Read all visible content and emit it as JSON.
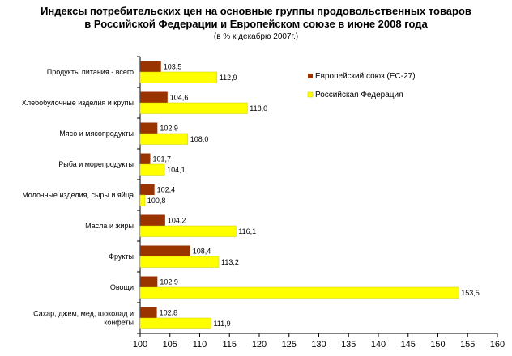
{
  "chart_data": {
    "type": "bar",
    "orientation": "horizontal",
    "title_lines": [
      "Индексы потребительских цен на основные группы продовольственных товаров",
      "в Российской Федерации и Европейском союзе в июне 2008 года"
    ],
    "subtitle": "(в % к декабрю 2007г.)",
    "categories": [
      [
        "Продукты питания - всего"
      ],
      [
        "Хлебобулочные изделия и крупы"
      ],
      [
        "Мясо и мясопродукты"
      ],
      [
        "Рыба и морепродукты"
      ],
      [
        "Молочные изделия, сыры и яйца"
      ],
      [
        "Масла и жиры"
      ],
      [
        "Фрукты"
      ],
      [
        "Овощи"
      ],
      [
        "Сахар, джем, мед, шоколад и",
        "конфеты"
      ]
    ],
    "series": [
      {
        "name": "Европейский союз (ЕС-27)",
        "color": "#993300",
        "values": [
          103.5,
          104.6,
          102.9,
          101.7,
          102.4,
          104.2,
          108.4,
          102.9,
          102.8
        ],
        "labels": [
          "103,5",
          "104,6",
          "102,9",
          "101,7",
          "102,4",
          "104,2",
          "108,4",
          "102,9",
          "102,8"
        ]
      },
      {
        "name": "Российская Федерация",
        "color": "#ffff00",
        "values": [
          112.9,
          118.0,
          108.0,
          104.1,
          100.8,
          116.1,
          113.2,
          153.5,
          111.9
        ],
        "labels": [
          "112,9",
          "118,0",
          "108,0",
          "104,1",
          "100,8",
          "116,1",
          "113,2",
          "153,5",
          "111,9"
        ]
      }
    ],
    "xlim": [
      100,
      160
    ],
    "xticks": [
      "100",
      "105",
      "110",
      "115",
      "120",
      "125",
      "130",
      "135",
      "140",
      "145",
      "150",
      "155",
      "160"
    ],
    "grid": false,
    "legend_position": "top-right"
  }
}
